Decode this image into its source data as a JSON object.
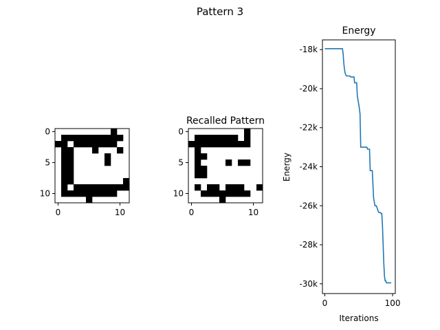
{
  "figure": {
    "suptitle": "Pattern 3"
  },
  "chart_data": [
    {
      "type": "heatmap",
      "title": "",
      "cmap": "gray_r",
      "rows": 12,
      "cols": 12,
      "xticks": [
        0,
        10
      ],
      "yticks": [
        0,
        5,
        10
      ],
      "grid": [
        [
          0,
          0,
          0,
          0,
          0,
          0,
          0,
          0,
          0,
          1,
          0,
          0
        ],
        [
          0,
          1,
          1,
          1,
          1,
          1,
          1,
          1,
          1,
          1,
          1,
          0
        ],
        [
          1,
          1,
          0,
          1,
          1,
          1,
          1,
          1,
          1,
          1,
          0,
          0
        ],
        [
          0,
          1,
          1,
          0,
          0,
          0,
          1,
          0,
          0,
          0,
          1,
          0
        ],
        [
          0,
          1,
          1,
          0,
          0,
          0,
          0,
          0,
          1,
          0,
          0,
          0
        ],
        [
          0,
          1,
          1,
          0,
          0,
          0,
          0,
          0,
          1,
          0,
          0,
          0
        ],
        [
          0,
          1,
          1,
          0,
          0,
          0,
          0,
          0,
          0,
          0,
          0,
          0
        ],
        [
          0,
          1,
          1,
          0,
          0,
          0,
          0,
          0,
          0,
          0,
          0,
          0
        ],
        [
          0,
          1,
          1,
          0,
          0,
          0,
          0,
          0,
          0,
          0,
          0,
          1
        ],
        [
          0,
          1,
          0,
          1,
          1,
          1,
          1,
          1,
          1,
          1,
          1,
          1
        ],
        [
          0,
          1,
          1,
          1,
          1,
          1,
          1,
          1,
          1,
          1,
          0,
          0
        ],
        [
          0,
          0,
          0,
          0,
          0,
          1,
          0,
          0,
          0,
          0,
          0,
          0
        ]
      ]
    },
    {
      "type": "heatmap",
      "title": "Recalled Pattern",
      "cmap": "gray_r",
      "rows": 12,
      "cols": 12,
      "xticks": [
        0,
        10
      ],
      "yticks": [
        0,
        5,
        10
      ],
      "grid": [
        [
          0,
          0,
          0,
          0,
          0,
          0,
          0,
          0,
          0,
          1,
          0,
          0
        ],
        [
          0,
          1,
          1,
          1,
          1,
          1,
          1,
          1,
          0,
          1,
          0,
          0
        ],
        [
          1,
          1,
          1,
          1,
          1,
          1,
          1,
          1,
          1,
          1,
          0,
          0
        ],
        [
          0,
          1,
          0,
          0,
          0,
          0,
          0,
          0,
          0,
          0,
          0,
          0
        ],
        [
          0,
          1,
          1,
          0,
          0,
          0,
          0,
          0,
          0,
          0,
          0,
          0
        ],
        [
          0,
          1,
          0,
          0,
          0,
          0,
          0,
          0,
          0,
          0,
          0,
          0
        ],
        [
          0,
          1,
          1,
          0,
          0,
          0,
          0,
          0,
          0,
          0,
          0,
          0
        ],
        [
          0,
          1,
          1,
          0,
          0,
          0,
          0,
          0,
          0,
          0,
          0,
          0
        ],
        [
          0,
          0,
          0,
          0,
          0,
          0,
          0,
          0,
          0,
          0,
          0,
          0
        ],
        [
          0,
          1,
          0,
          1,
          1,
          0,
          1,
          1,
          1,
          0,
          0,
          1
        ],
        [
          0,
          0,
          1,
          1,
          1,
          1,
          1,
          1,
          1,
          1,
          0,
          0
        ],
        [
          0,
          0,
          0,
          0,
          0,
          1,
          0,
          0,
          0,
          0,
          0,
          0
        ]
      ],
      "extra_cells": [
        [
          5,
          6
        ],
        [
          5,
          8
        ],
        [
          5,
          9
        ]
      ]
    },
    {
      "type": "line",
      "title": "Energy",
      "xlabel": "Iterations",
      "ylabel": "Energy",
      "xlim": [
        -3.5,
        104
      ],
      "ylim": [
        -30500,
        -17500
      ],
      "xticks": [
        0,
        100
      ],
      "yticks": [
        -18000,
        -20000,
        -22000,
        -24000,
        -26000,
        -28000,
        -30000
      ],
      "ytick_labels": [
        "-18k",
        "-20k",
        "-22k",
        "-24k",
        "-26k",
        "-28k",
        "-30k"
      ],
      "color": "#1f77b4",
      "series": [
        {
          "x": [
            0,
            26,
            27,
            28,
            29,
            30,
            31,
            32,
            33,
            37,
            38,
            43,
            44,
            47,
            48,
            49,
            50,
            51,
            52,
            53,
            55,
            56,
            62,
            63,
            66,
            67,
            68,
            69,
            70,
            72,
            74,
            75,
            76,
            77,
            79,
            80,
            82,
            83,
            84,
            85,
            87,
            88,
            89,
            90,
            91,
            95,
            98
          ],
          "y": [
            -17950,
            -17950,
            -18200,
            -18700,
            -19000,
            -19200,
            -19300,
            -19350,
            -19350,
            -19350,
            -19400,
            -19400,
            -19700,
            -19700,
            -20400,
            -20600,
            -20800,
            -21000,
            -21300,
            -23000,
            -23000,
            -23000,
            -23000,
            -23100,
            -23100,
            -24200,
            -24200,
            -24200,
            -24200,
            -25600,
            -26000,
            -26000,
            -26000,
            -26100,
            -26300,
            -26350,
            -26350,
            -26400,
            -26400,
            -27000,
            -28900,
            -29600,
            -29850,
            -29850,
            -29950,
            -29950,
            -29950
          ]
        }
      ]
    }
  ]
}
